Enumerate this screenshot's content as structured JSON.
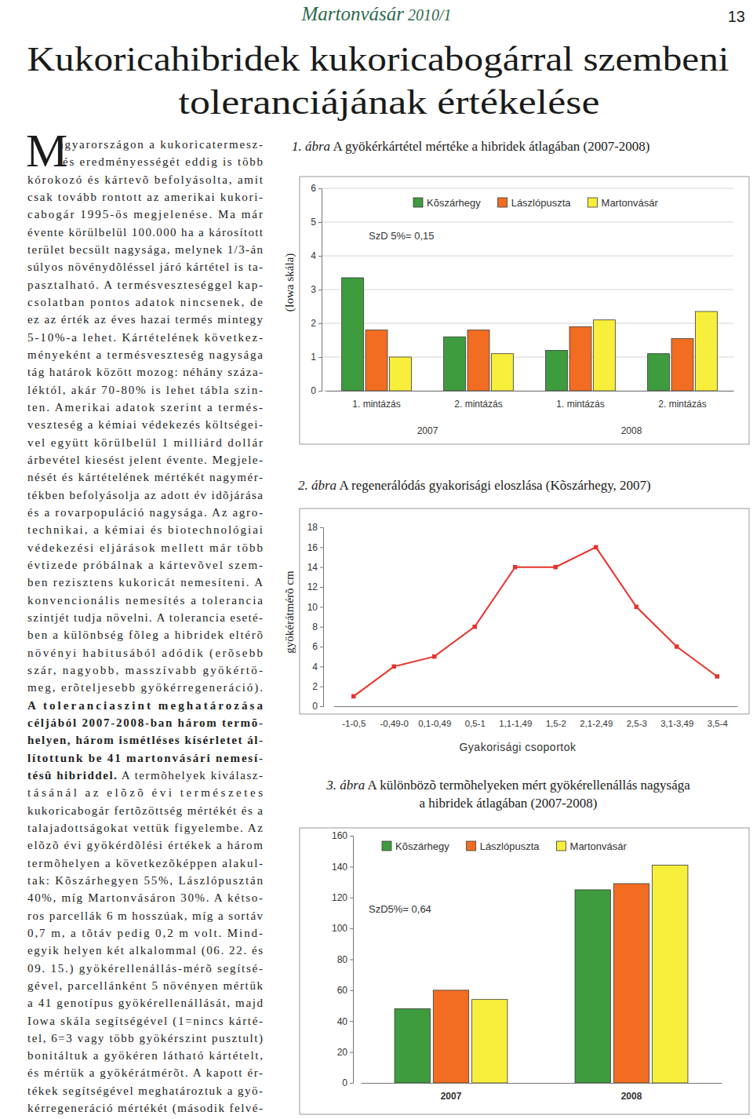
{
  "header": {
    "magazine": "Martonvásár",
    "issue": "2010/1",
    "page": 13
  },
  "title": [
    "Kukoricahibridek kukoricabogárral szembeni",
    "toleranciájának értékelése"
  ],
  "body": {
    "drop_cap": "M",
    "lines": [
      "agyarországon a kukoricatermesz-",
      "tés eredményességét eddig is több",
      "kórokozó és kártevõ befolyásolta, amit",
      "csak tovább rontott az amerikai kukori-",
      "cabogár 1995-ös megjelenése. Ma már",
      "évente körülbelül 100.000 ha a károsított",
      "terület becsült nagysága, melynek 1/3-án",
      "súlyos növénydõléssel járó kártétel is ta-",
      "pasztalható. A termésveszteséggel kap-",
      "csolatban pontos adatok nincsenek, de",
      "ez az érték az éves hazai termés mintegy",
      "5-10%-a lehet. Kártételének következ-",
      "ményeként a termésveszteség nagysága",
      "tág határok között mozog: néhány száza-",
      "léktól, akár 70-80% is lehet tábla szin-",
      "ten. Amerikai adatok szerint a termés-",
      "veszteség a kémiai védekezés költségei-",
      "vel együtt körülbelül 1 milliárd dollár",
      "árbevétel kiesést jelent évente. Megjele-",
      "nését és kártételének mértékét nagymér-",
      "tékben befolyásolja az adott év idõjárása",
      "és a rovarpopuláció nagysága. Az agro-",
      "technikai, a kémiai és biotechnológiai",
      "védekezési eljárások mellett már több",
      "évtizede próbálnak a kártevõvel szem-",
      "ben rezisztens kukoricát nemesíteni. A",
      "konvencionális nemesítés a tolerancia",
      "szintjét tudja növelni. A tolerancia eseté-",
      "ben a különbség fõleg a hibridek eltérõ",
      "növényi habitusából adódik (erõsebb",
      "szár, nagyobb, masszívabb gyökértö-",
      "meg, erõteljesebb gyökérregeneráció).",
      {
        "bold": "A toleranciaszint meghatározása"
      },
      {
        "bold": "céljából 2007-2008-ban három termõ-"
      },
      {
        "bold": "helyen, három ismétléses kísérletet ál-"
      },
      {
        "bold": "lítottunk be 41 martonvásári nemesí-"
      },
      {
        "bold": "tésû hibriddel.",
        "rest": " A termõhelyek kiválasz-"
      },
      "tásánál az elõzõ évi természetes",
      "kukoricabogár fertõzöttség mértékét és a",
      "talajadottságokat vettük figyelembe. Az",
      "elõzõ évi gyökérdõlési értékek a három",
      "termõhelyen a következõképpen alakul-",
      "tak: Kõszárhegyen 55%, Lászlópusztán",
      "40%, míg Martonvásáron 30%. A kétso-",
      "ros parcellák 6 m hosszúak, míg a sortáv",
      "0,7 m, a tõtáv pedig 0,2 m volt. Mind-",
      "egyik helyen két alkalommal (06. 22. és",
      "09. 15.) gyökérellenállás-mérõ segítsé-",
      "gével, parcellánként 5 növényen mértük",
      "a 41 genotípus gyökérellenállását, majd",
      "Iowa skála segítségével (1=nincs kárté-",
      "tel, 6=3 vagy több gyökérszint pusztult)",
      "bonitáltuk a gyökéren látható kártételt,",
      "és mértük a gyökérátmérõt. A kapott ér-",
      "tékek segítségével meghatároztuk a gyö-",
      "kérregeneráció mértékét (második felvé-"
    ]
  },
  "chart_data": [
    {
      "type": "bar",
      "title": [
        "1. ábra A gyökérkártétel mértéke a hibridek átlagában (2007-2008)"
      ],
      "ylabel": "(Iowa skála)",
      "categories": [
        "1. mintázás",
        "2. mintázás",
        "1. mintázás",
        "2. mintázás"
      ],
      "group_labels": [
        "2007",
        "2008"
      ],
      "series": [
        {
          "name": "Kõszárhegy",
          "color": "#3e9b3e",
          "values": [
            3.35,
            1.6,
            1.2,
            1.1
          ]
        },
        {
          "name": "Lászlópuszta",
          "color": "#f26d21",
          "values": [
            1.8,
            1.8,
            1.9,
            1.55
          ]
        },
        {
          "name": "Martonvásár",
          "color": "#f7ef3b",
          "values": [
            1.0,
            1.1,
            2.1,
            2.35
          ]
        }
      ],
      "annotations": [
        "SzD 5%= 0,15"
      ],
      "ylim": [
        0,
        6
      ],
      "yticks": [
        0,
        1,
        2,
        3,
        4,
        5,
        6
      ],
      "grid": true,
      "legend": "top"
    },
    {
      "type": "line",
      "title": [
        "2. ábra A regenerálódás gyakorisági eloszlása (Kõszárhegy, 2007)"
      ],
      "ylabel": "gyökérátmérõ cm",
      "xlabel": "Gyakorisági csoportok",
      "categories": [
        "-1-0,5",
        "-0,49-0",
        "0,1-0,49",
        "0,5-1",
        "1,1-1,49",
        "1,5-2",
        "2,1-2,49",
        "2,5-3",
        "3,1-3,49",
        "3,5-4"
      ],
      "values": [
        1,
        4,
        5,
        8,
        14,
        14,
        16,
        10,
        6,
        3
      ],
      "color": "#e8322c",
      "marker": "square",
      "ylim": [
        0,
        18
      ],
      "yticks": [
        0,
        2,
        4,
        6,
        8,
        10,
        12,
        14,
        16,
        18
      ],
      "grid": false
    },
    {
      "type": "bar",
      "title": [
        "3. ábra A különbözõ termõhelyeken mért gyökérellenállás nagysága",
        "a hibridek átlagában (2007-2008)"
      ],
      "categories": [
        "2007",
        "2008"
      ],
      "series": [
        {
          "name": "Kõszárhegy",
          "color": "#3e9b3e",
          "values": [
            48,
            125
          ]
        },
        {
          "name": "Lászlópuszta",
          "color": "#f26d21",
          "values": [
            60,
            129
          ]
        },
        {
          "name": "Martonvásár",
          "color": "#f7ef3b",
          "values": [
            54,
            141
          ]
        }
      ],
      "annotations": [
        "SzD5%= 0,64"
      ],
      "ylim": [
        0,
        160
      ],
      "yticks": [
        0,
        20,
        40,
        60,
        80,
        100,
        120,
        140,
        160
      ],
      "grid": false,
      "legend": "top"
    }
  ]
}
